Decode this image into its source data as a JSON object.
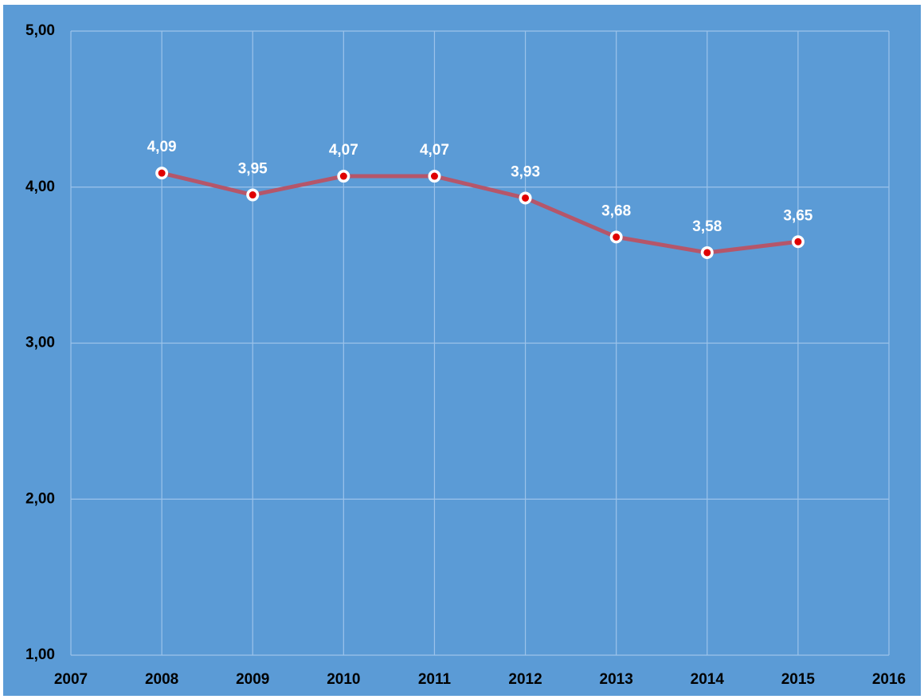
{
  "chart_data": {
    "type": "line",
    "x": [
      2008,
      2009,
      2010,
      2011,
      2012,
      2013,
      2014,
      2015
    ],
    "series": [
      {
        "color": "#b5566a",
        "values": [
          4.09,
          3.95,
          4.07,
          4.07,
          3.93,
          3.68,
          3.58,
          3.65
        ],
        "value_labels": [
          "4,09",
          "3,95",
          "4,07",
          "4,07",
          "3,93",
          "3,68",
          "3,58",
          "3,65"
        ]
      }
    ],
    "xlim": [
      2007,
      2016
    ],
    "xticks": [
      2007,
      2008,
      2009,
      2010,
      2011,
      2012,
      2013,
      2014,
      2015,
      2016
    ],
    "ylim": [
      1,
      5
    ],
    "yticks": [
      {
        "value": 1,
        "label": "1,00"
      },
      {
        "value": 2,
        "label": "2,00"
      },
      {
        "value": 3,
        "label": "3,00"
      },
      {
        "value": 4,
        "label": "4,00"
      },
      {
        "value": 5,
        "label": "5,00"
      }
    ],
    "grid": true
  }
}
